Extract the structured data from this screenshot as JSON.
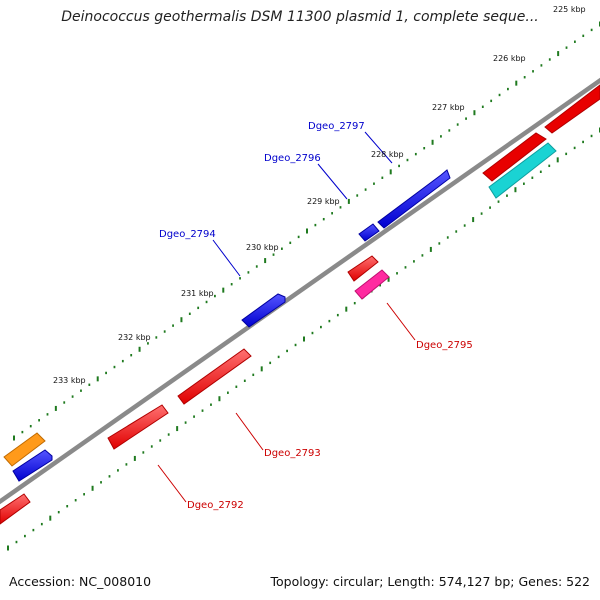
{
  "title": "Deinococcus geothermalis DSM 11300 plasmid 1, complete seque...",
  "footer": {
    "accession": "Accession: NC_008010",
    "summary": "Topology: circular; Length: 574,127 bp; Genes: 522"
  },
  "ticks": [
    "225 kbp",
    "226 kbp",
    "227 kbp",
    "228 kbp",
    "229 kbp",
    "230 kbp",
    "231 kbp",
    "232 kbp",
    "233 kbp"
  ],
  "gene_labels": {
    "dgeo_2797": "Dgeo_2797",
    "dgeo_2796": "Dgeo_2796",
    "dgeo_2794": "Dgeo_2794",
    "dgeo_2795": "Dgeo_2795",
    "dgeo_2793": "Dgeo_2793",
    "dgeo_2792": "Dgeo_2792"
  },
  "colors": {
    "forward_gene": "#1a1aff",
    "reverse_gene": "#ff1a1a",
    "cyan_gene": "#1ad3d3",
    "orange_gene": "#ff9a1a",
    "magenta_gene": "#ff2aa0",
    "tick": "#1f7a1f",
    "backbone": "#8a8a8a",
    "label_blue": "#0000cc",
    "label_red": "#cc0000"
  }
}
